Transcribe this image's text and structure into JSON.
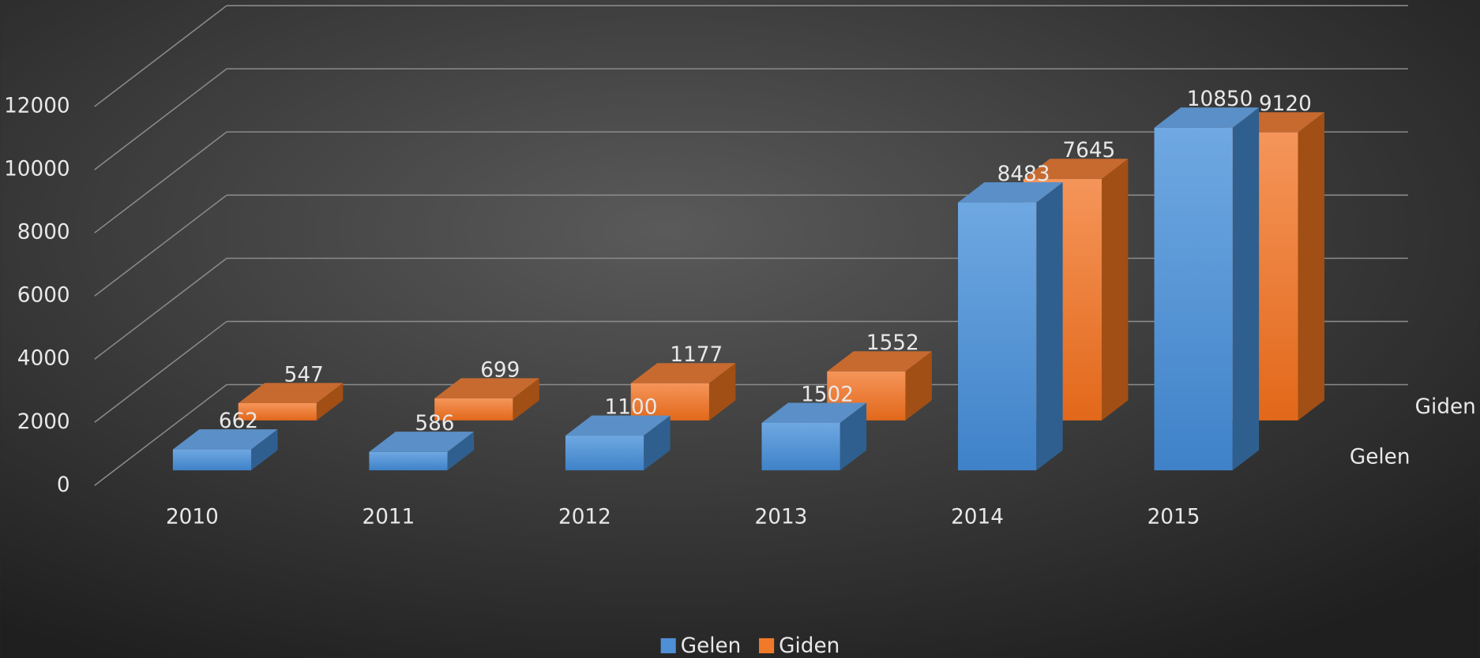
{
  "chart_data": {
    "type": "bar3d",
    "categories": [
      "2010",
      "2011",
      "2012",
      "2013",
      "2014",
      "2015"
    ],
    "series": [
      {
        "name": "Gelen",
        "color": "#4f8fd6",
        "values": [
          662,
          586,
          1100,
          1502,
          8483,
          10850
        ]
      },
      {
        "name": "Giden",
        "color": "#f07a2a",
        "values": [
          547,
          699,
          1177,
          1552,
          7645,
          9120
        ]
      }
    ],
    "ylim": [
      0,
      12000
    ],
    "yticks": [
      0,
      2000,
      4000,
      6000,
      8000,
      10000,
      12000
    ],
    "grid": true,
    "legend": "bottom"
  }
}
